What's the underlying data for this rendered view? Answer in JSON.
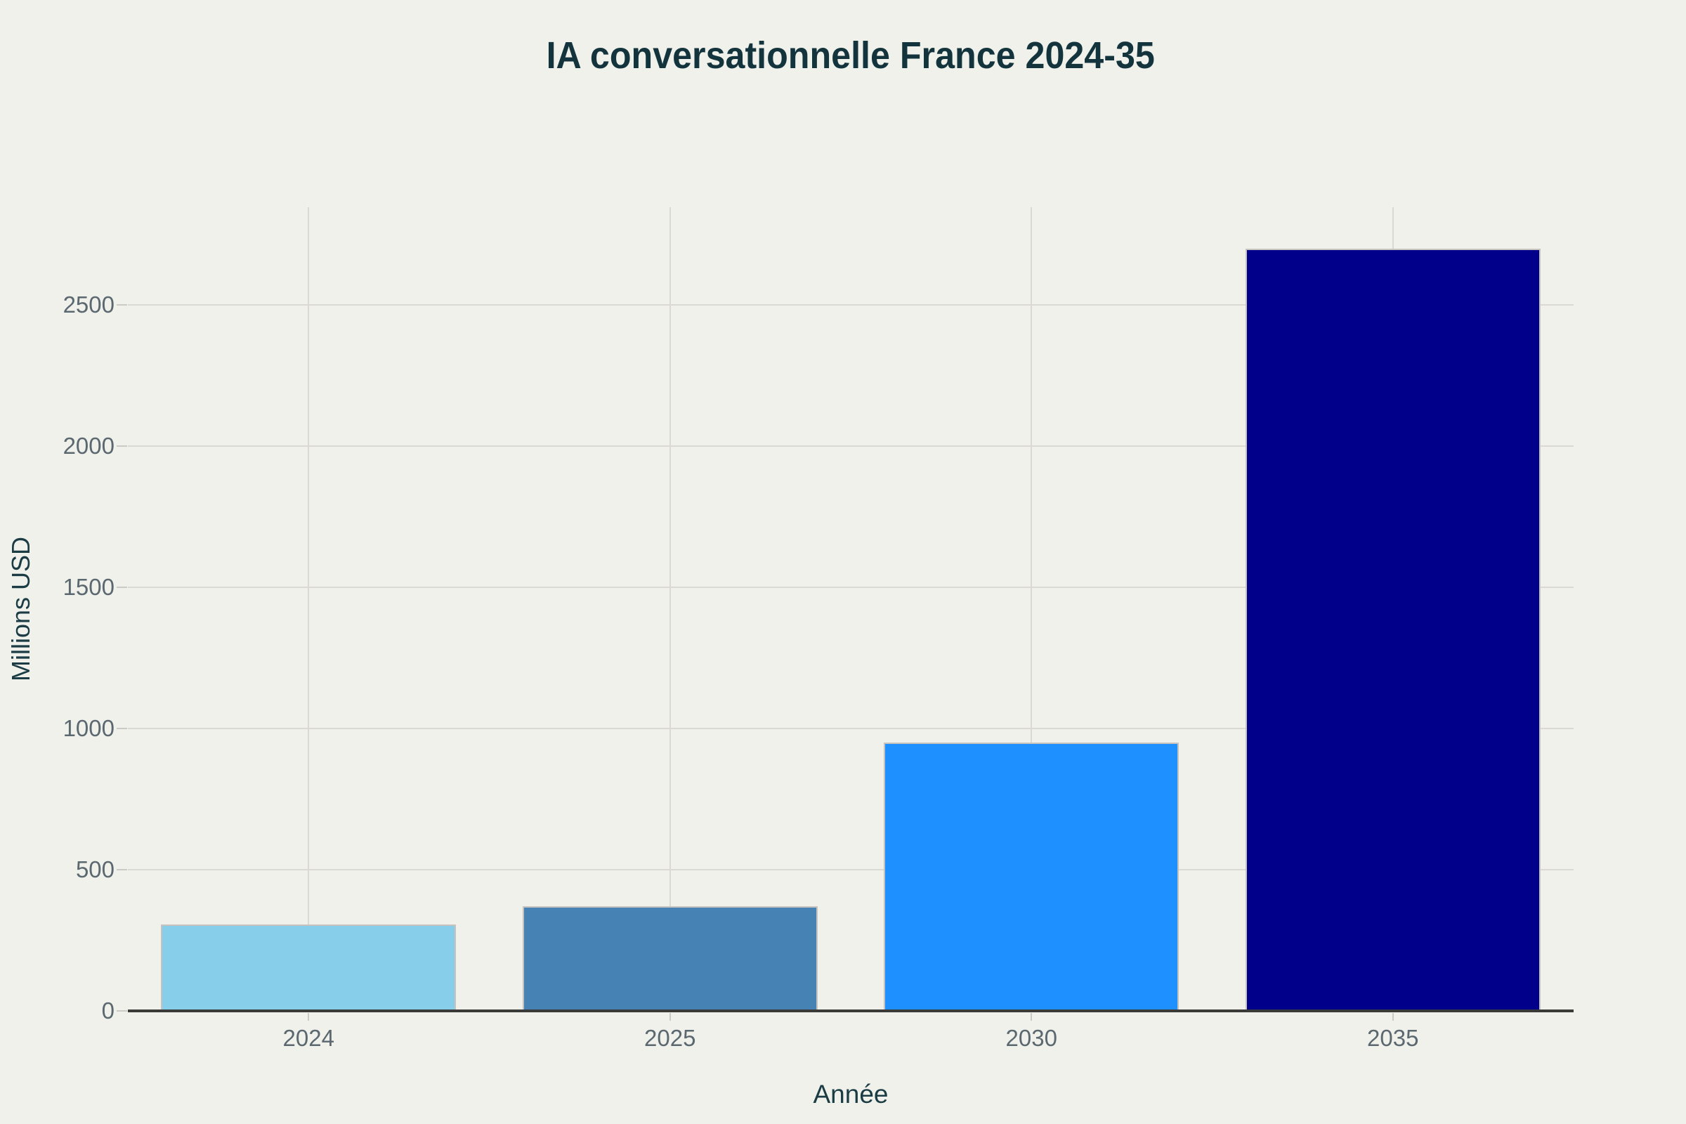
{
  "chart_data": {
    "type": "bar",
    "title": "IA conversationnelle France 2024-35",
    "xlabel": "Année",
    "ylabel": "Millions USD",
    "categories": [
      "2024",
      "2025",
      "2030",
      "2035"
    ],
    "values": [
      305,
      370,
      950,
      2700
    ],
    "bar_colors": [
      "#87CEEB",
      "#4682B4",
      "#1E90FF",
      "#00008B"
    ],
    "yticks": [
      0,
      500,
      1000,
      1500,
      2000,
      2500
    ],
    "ylim": [
      0,
      2845
    ],
    "grid": true,
    "legend_position": "none"
  },
  "colors": {
    "background": "#F0F1EB",
    "title": "#14343D",
    "axis_label": "#1B3C45",
    "tick_label": "#5C6870",
    "gridline": "#DAD9D3",
    "tick_mark": "#CBCAC4",
    "axis_line": "#3A3A38",
    "bar_edge": "#C6C3BE"
  }
}
